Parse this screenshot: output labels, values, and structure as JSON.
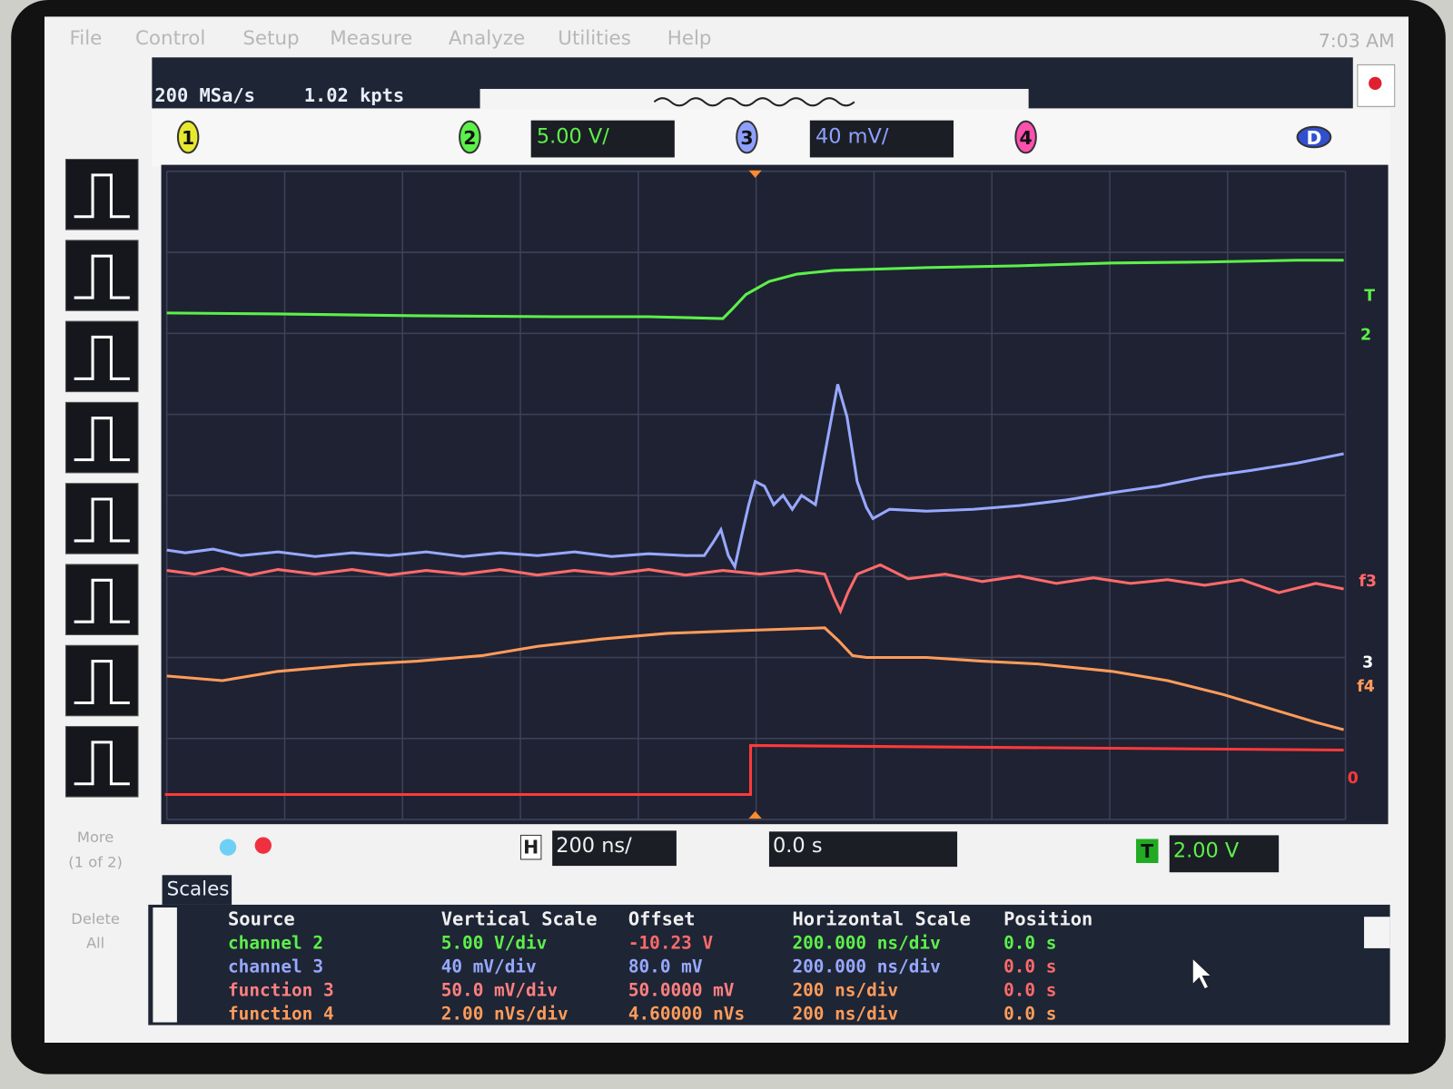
{
  "menu": [
    "File",
    "Control",
    "Setup",
    "Measure",
    "Analyze",
    "Utilities",
    "Help"
  ],
  "clock": "7:03 AM",
  "status": {
    "sample_rate": "200 MSa/s",
    "points": "1.02 kpts"
  },
  "channels": [
    "1",
    "2",
    "3",
    "4",
    "D"
  ],
  "channel_scales": {
    "ch2": "5.00 V/",
    "ch3": "40 mV/"
  },
  "markers": [
    "T",
    "2",
    "f3",
    "3",
    "f4",
    "0"
  ],
  "side": {
    "more": "More",
    "page": "(1 of 2)",
    "delete_1": "Delete",
    "delete_2": "All"
  },
  "bottom": {
    "h_label": "H",
    "h_scale": "200 ns/",
    "delay": "0.0 s",
    "t_label": "T",
    "t_level": "2.00 V"
  },
  "scales_panel": {
    "tab": "Scales",
    "headers": [
      "Source",
      "Vertical Scale",
      "Offset",
      "Horizontal Scale",
      "Position"
    ],
    "rows": [
      [
        "channel 2",
        "5.00 V/div",
        "-10.23 V",
        "200.000 ns/div",
        "0.0 s"
      ],
      [
        "channel 3",
        "40 mV/div",
        "80.0 mV",
        "200.000 ns/div",
        "0.0 s"
      ],
      [
        "function 3",
        "50.0 mV/div",
        "50.0000 mV",
        "200 ns/div",
        "0.0 s"
      ],
      [
        "function 4",
        "2.00 nVs/div",
        "4.60000 nVs",
        "200 ns/div",
        "0.0 s"
      ]
    ]
  }
}
